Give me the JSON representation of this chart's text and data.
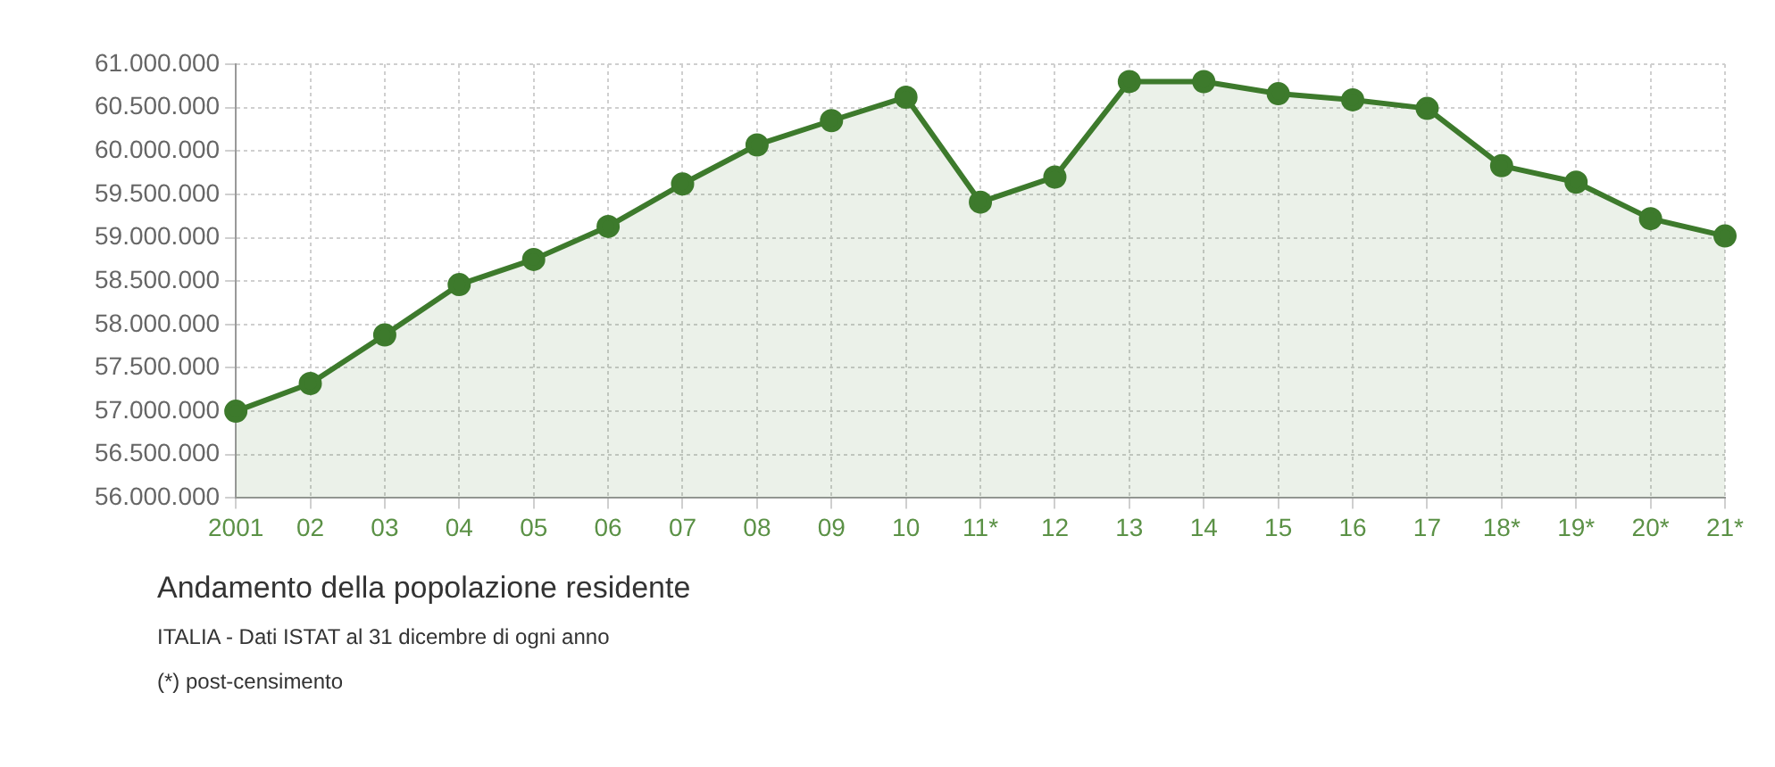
{
  "chart_data": {
    "type": "area",
    "title": "Andamento della popolazione residente",
    "categories": [
      "2001",
      "02",
      "03",
      "04",
      "05",
      "06",
      "07",
      "08",
      "09",
      "10",
      "11*",
      "12",
      "13",
      "14",
      "15",
      "16",
      "17",
      "18*",
      "19*",
      "20*",
      "21*"
    ],
    "series": [
      {
        "color": "#3d7a2c",
        "values": [
          57000000,
          57320000,
          57880000,
          58460000,
          58750000,
          59130000,
          59620000,
          60070000,
          60350000,
          60620000,
          59410000,
          59700000,
          60800000,
          60800000,
          60660000,
          60590000,
          60490000,
          59830000,
          59640000,
          59220000,
          59020000
        ]
      }
    ],
    "ylim": [
      56000000,
      61000000
    ],
    "yticks": [
      {
        "value": 56000000,
        "label": "56.000.000"
      },
      {
        "value": 56500000,
        "label": "56.500.000"
      },
      {
        "value": 57000000,
        "label": "57.000.000"
      },
      {
        "value": 57500000,
        "label": "57.500.000"
      },
      {
        "value": 58000000,
        "label": "58.000.000"
      },
      {
        "value": 58500000,
        "label": "58.500.000"
      },
      {
        "value": 59000000,
        "label": "59.000.000"
      },
      {
        "value": 59500000,
        "label": "59.500.000"
      },
      {
        "value": 60000000,
        "label": "60.000.000"
      },
      {
        "value": 60500000,
        "label": "60.500.000"
      },
      {
        "value": 61000000,
        "label": "61.000.000"
      }
    ],
    "grid": true,
    "marker": "circle",
    "legend": false,
    "annotations": [
      "ITALIA - Dati ISTAT al 31 dicembre di ogni anno",
      "(*) post-censimento"
    ]
  }
}
